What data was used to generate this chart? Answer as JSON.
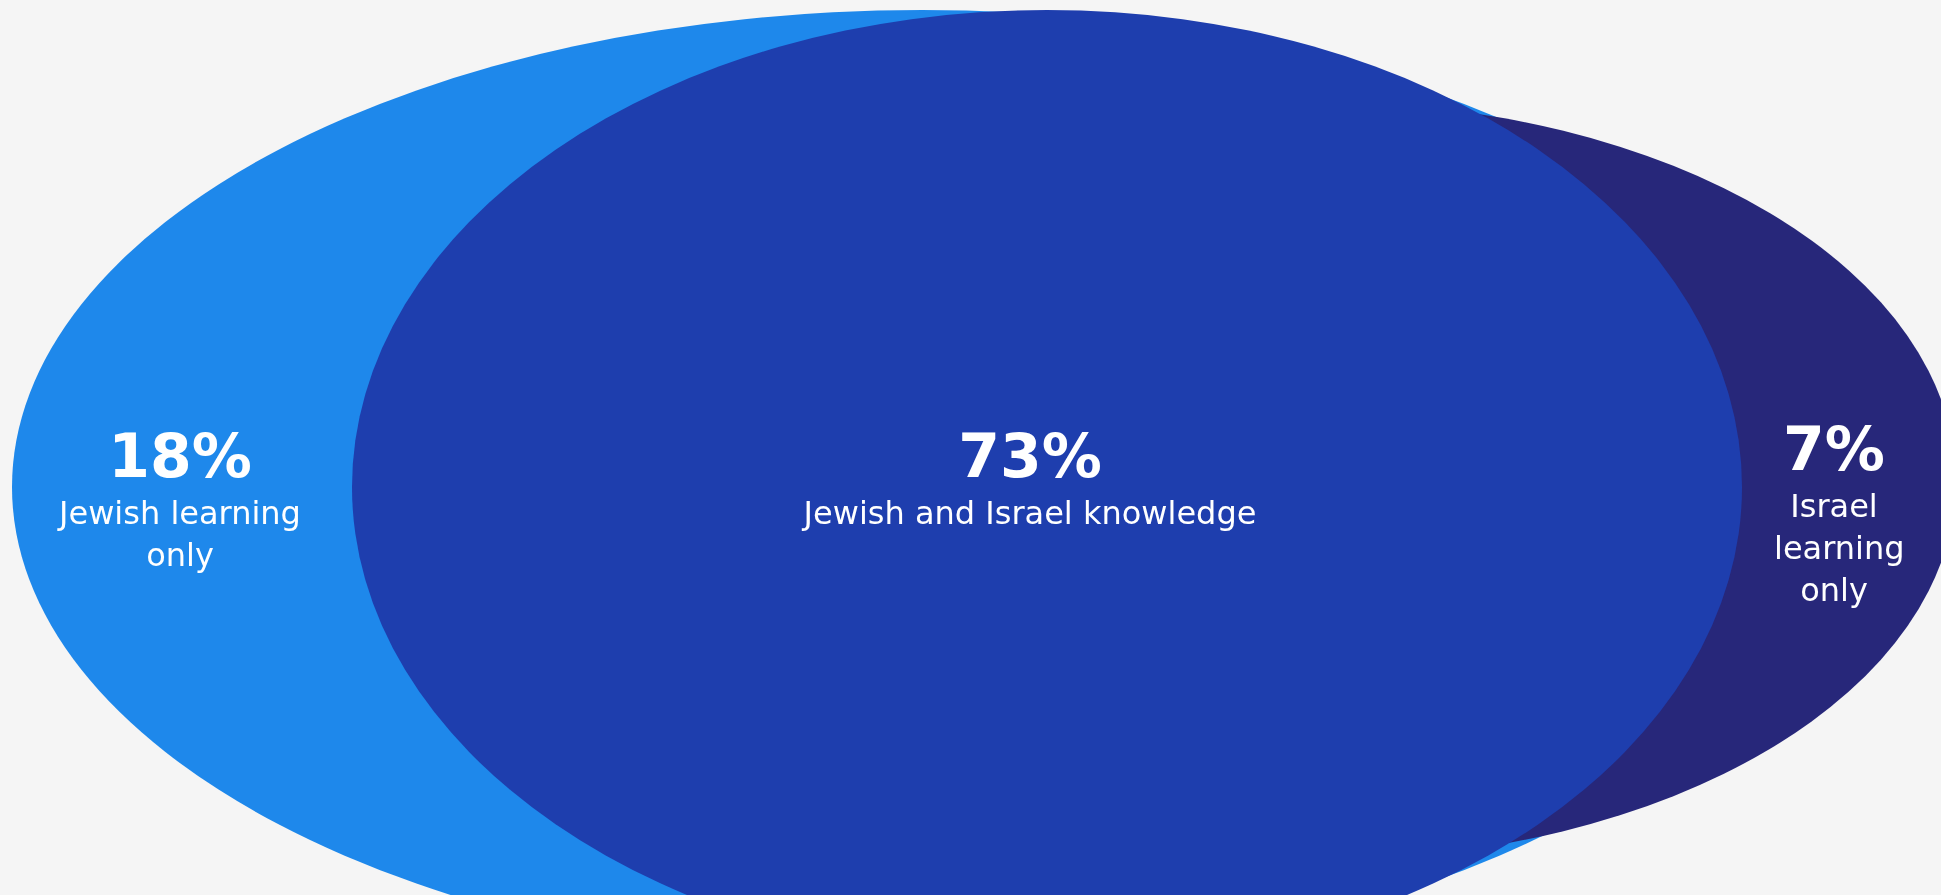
{
  "chart_data": {
    "type": "other",
    "categories": [
      "Jewish learning only",
      "Jewish and Israel knowledge",
      "Israel learning only"
    ],
    "values": [
      18,
      73,
      7
    ],
    "value_labels": [
      "18%",
      "73%",
      "7%"
    ],
    "colors": [
      "#1e88eb",
      "#1e3eae",
      "#27277a"
    ]
  }
}
